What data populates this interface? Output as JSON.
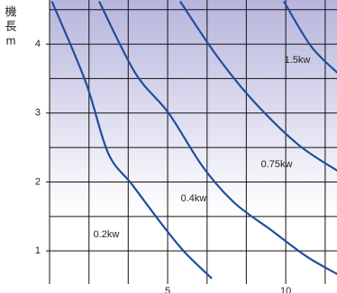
{
  "chart_data": {
    "type": "line",
    "y_label_lines": [
      "機",
      "長",
      "m"
    ],
    "xlim": [
      0,
      12.17
    ],
    "ylim": [
      0.52,
      4.64
    ],
    "xticks": [
      5,
      10
    ],
    "yticks": [
      1,
      2,
      3,
      4
    ],
    "xgrid": [
      0,
      1.67,
      3.33,
      5,
      6.67,
      8.33,
      10,
      11.67
    ],
    "ygrid": [
      1,
      1.5,
      2,
      2.5,
      3,
      3.5,
      4,
      4.5
    ],
    "grid": true,
    "series": [
      {
        "name": "0.2kw",
        "color": "#1f4e9c",
        "x": [
          0.1,
          1.53,
          2.48,
          3.5,
          4.77,
          5.7,
          6.87
        ],
        "values": [
          4.62,
          3.45,
          2.42,
          1.96,
          1.38,
          0.99,
          0.6
        ]
      },
      {
        "name": "0.4kw",
        "color": "#1f4e9c",
        "x": [
          2.1,
          3.63,
          5.04,
          6.49,
          7.82,
          9.35,
          10.88,
          12.2
        ],
        "values": [
          4.62,
          3.58,
          3.0,
          2.22,
          1.7,
          1.31,
          0.92,
          0.66
        ]
      },
      {
        "name": "0.75kw",
        "color": "#1f4e9c",
        "x": [
          5.53,
          7.06,
          8.59,
          10.5,
          12.2
        ],
        "values": [
          4.62,
          3.84,
          3.19,
          2.55,
          2.16
        ]
      },
      {
        "name": "1.5kw",
        "color": "#1f4e9c",
        "x": [
          9.92,
          11.07,
          12.2
        ],
        "values": [
          4.62,
          3.97,
          3.58
        ]
      }
    ]
  }
}
